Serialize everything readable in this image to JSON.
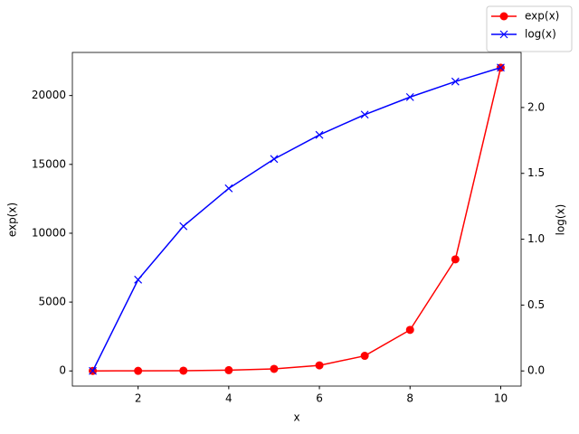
{
  "chart_data": {
    "type": "line",
    "x": [
      1,
      2,
      3,
      4,
      5,
      6,
      7,
      8,
      9,
      10
    ],
    "xlabel": "x",
    "ylabel": "exp(x)",
    "y2label": "log(x)",
    "xlim": [
      0.55,
      10.45
    ],
    "xticks": [
      2,
      4,
      6,
      8,
      10
    ],
    "ylim": [
      -1100,
      23130
    ],
    "yticks": [
      0,
      5000,
      10000,
      15000,
      20000
    ],
    "y2lim": [
      -0.115,
      2.418
    ],
    "y2ticks": [
      {
        "value": 0,
        "label": "0.0"
      },
      {
        "value": 0.5,
        "label": "0.5"
      },
      {
        "value": 1,
        "label": "1.0"
      },
      {
        "value": 1.5,
        "label": "1.5"
      },
      {
        "value": 2,
        "label": "2.0"
      }
    ],
    "legend": "upper right",
    "series": [
      {
        "name": "exp(x)",
        "color": "#ff0000",
        "marker": "o",
        "values": [
          2.718,
          7.389,
          20.09,
          54.6,
          148.4,
          403.4,
          1096.6,
          2981,
          8103,
          22026
        ]
      },
      {
        "name": "log(x)",
        "color": "#0000ff",
        "marker": "x",
        "axis": "y2",
        "values": [
          0,
          0.693,
          1.099,
          1.386,
          1.609,
          1.792,
          1.946,
          2.079,
          2.197,
          2.303
        ]
      }
    ]
  }
}
